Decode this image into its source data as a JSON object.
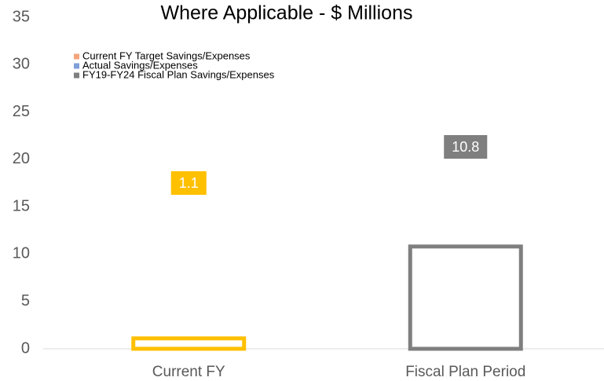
{
  "chart_data": {
    "type": "bar",
    "title": "Where Applicable  - $ Millions",
    "categories": [
      "Current FY",
      "Fiscal Plan Period"
    ],
    "values": [
      1.1,
      10.8
    ],
    "colors": [
      "#ffc000",
      "#7f7f7f"
    ],
    "legend": [
      {
        "name": "Current FY Target Savings/Expenses",
        "color": "#f4a47c"
      },
      {
        "name": "Actual Savings/Expenses",
        "color": "#7f9fd8"
      },
      {
        "name": "FY19-FY24 Fiscal Plan Savings/Expenses",
        "color": "#7f7f7f"
      }
    ],
    "ylim": [
      0,
      35
    ],
    "yticks": [
      0,
      5,
      10,
      15,
      20,
      25,
      30,
      35
    ],
    "grid": false
  }
}
